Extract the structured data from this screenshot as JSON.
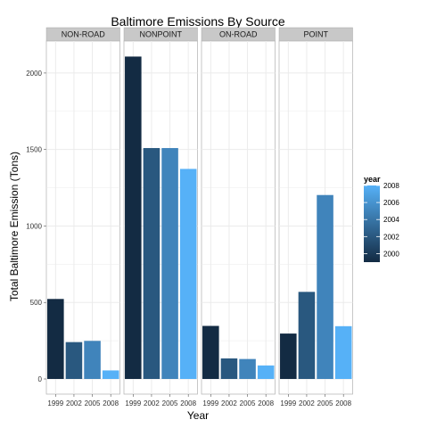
{
  "chart_data": {
    "type": "bar",
    "title": "Baltimore Emissions By Source",
    "xlabel": "Year",
    "ylabel": "Total Baltimore Emission (Tons)",
    "ylim": [
      0,
      2200
    ],
    "yticks": [
      0,
      500,
      1000,
      1500,
      2000
    ],
    "categories": [
      "1999",
      "2002",
      "2005",
      "2008"
    ],
    "grid": true,
    "legend_position": "right",
    "colors": {
      "low": "#132b43",
      "high": "#56b1f7",
      "panel_bg": "#ffffff",
      "strip_bg": "#c8c8c8",
      "grid": "#ebebeb"
    },
    "facets": [
      {
        "name": "NON-ROAD",
        "values": [
          522.94,
          240.85,
          248.93,
          55.82
        ]
      },
      {
        "name": "NONPOINT",
        "values": [
          2107.63,
          1509.5,
          1509.5,
          1373.21
        ]
      },
      {
        "name": "ON-ROAD",
        "values": [
          346.82,
          134.31,
          130.43,
          88.28
        ]
      },
      {
        "name": "POINT",
        "values": [
          296.8,
          569.26,
          1202.49,
          344.98
        ]
      }
    ],
    "legend": {
      "title": "year",
      "min": 1999,
      "max": 2008,
      "labels": [
        "2000",
        "2002",
        "2004",
        "2006",
        "2008"
      ]
    }
  }
}
